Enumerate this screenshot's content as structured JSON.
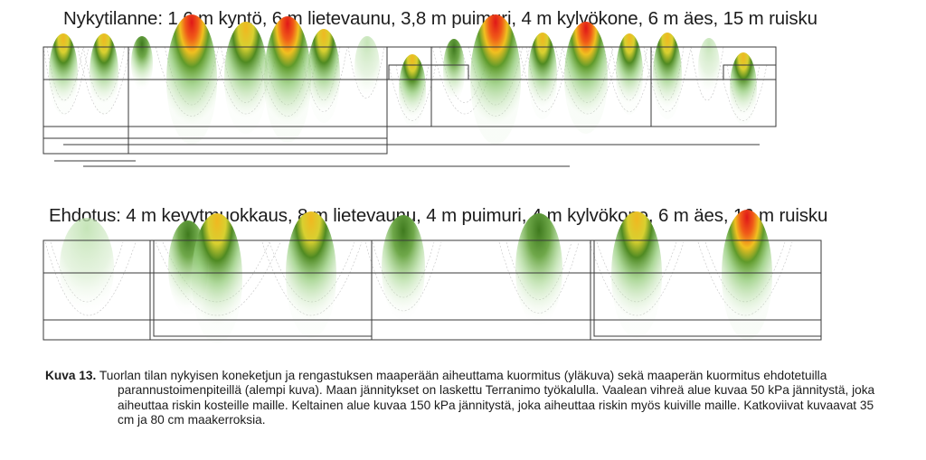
{
  "figure": {
    "top_title": "Nykytilanne: 1,6 m kyntö, 6 m lietevaunu, 3,8 m puimuri, 4 m kylvökone, 6 m äes, 15 m ruisku",
    "bottom_title": "Ehdotus: 4 m kevytmuokkaus, 8 m lietevaunu, 4 m puimuri, 4 m kylvökone, 6 m äes, 16 m ruisku",
    "top_panel_name": "current-stress-plot",
    "bottom_panel_name": "proposed-stress-plot"
  },
  "caption": {
    "label": "Kuva 13.",
    "text": "Tuorlan tilan nykyisen koneketjun ja rengastuksen maaperään aiheuttama kuormitus (yläkuva) sekä maaperän kuormitus ehdotetuilla parannustoimenpiteillä (alempi kuva). Maan jännitykset on laskettu Terranimo työkalulla. Vaalean vihreä alue kuvaa 50 kPa jännitystä, joka aiheuttaa riskin kosteille maille. Keltainen alue kuvaa 150 kPa jännitystä, joka aiheuttaa riskin myös kuiville maille. Katkoviivat kuvaavat 35 cm ja 80 cm maakerroksia."
  },
  "colors": {
    "low_stress": "#8cc870",
    "mid_stress": "#3f7a1e",
    "yellow": "#f0c020",
    "red": "#e01818",
    "contour": "#9a9a9a",
    "frame": "#3a3a3a"
  }
}
